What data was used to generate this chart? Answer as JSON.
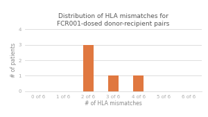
{
  "title": "Distribution of HLA mismatches for\nFCR001-dosed donor-recipient pairs",
  "xlabel": "# of HLA mismatches",
  "ylabel": "# of patients",
  "categories": [
    "0 of 6",
    "1 of 6",
    "2 of 6",
    "3 of 6",
    "4 of 6",
    "5 of 6",
    "6 of 6"
  ],
  "values": [
    0,
    0,
    3,
    1,
    1,
    0,
    0
  ],
  "bar_color": "#E07840",
  "ylim": [
    0,
    4
  ],
  "yticks": [
    0,
    1,
    2,
    3,
    4
  ],
  "figure_bg": "#ffffff",
  "axes_bg": "#ffffff",
  "grid_color": "#d8d8d8",
  "title_fontsize": 6.5,
  "axis_label_fontsize": 5.5,
  "tick_fontsize": 5.0,
  "bar_width": 0.4,
  "title_color": "#555555",
  "label_color": "#888888",
  "tick_color": "#aaaaaa"
}
